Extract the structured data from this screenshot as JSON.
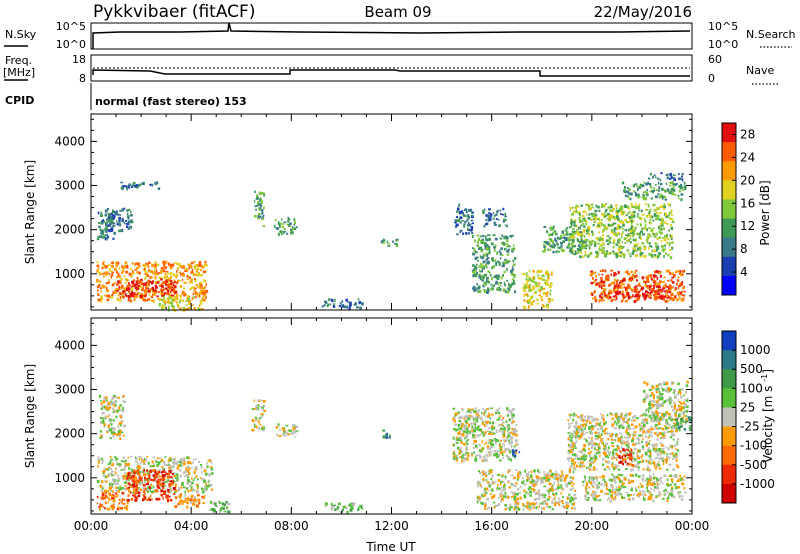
{
  "header": {
    "station": "Pykkvibaer (fitACF)",
    "beam": "Beam 09",
    "date": "22/May/2016"
  },
  "summary_panel": {
    "nsky_label": "N.Sky",
    "nsky_ticks": [
      "10^5",
      "10^0"
    ],
    "nsearch_label": "N.Search",
    "nsearch_ticks": [
      "10^5",
      "10^0"
    ],
    "freq_label": "Freq.",
    "freq_unit": "[MHz]",
    "freq_ticks": [
      "18",
      "8"
    ],
    "nave_label": "Nave",
    "nave_ticks": [
      "60",
      "0"
    ],
    "cpid_label": "CPID",
    "cpid_text": "normal (fast stereo) 153"
  },
  "colors": {
    "power": [
      "#0000ff",
      "#1a3fb0",
      "#3a7a8a",
      "#3f9a58",
      "#7fc83a",
      "#e0d020",
      "#ff9a00",
      "#ff5a00",
      "#e01010"
    ],
    "velocity": [
      "#1040c0",
      "#2a7a8a",
      "#3f9a4a",
      "#58c038",
      "#c0c0b8",
      "#ff9a00",
      "#ff6a00",
      "#ee2a00",
      "#d00000"
    ]
  },
  "chart_data": [
    {
      "type": "heatmap",
      "title": "Power",
      "xlabel": "",
      "ylabel": "Slant Range [km]",
      "x_ticks": [
        "00:00",
        "04:00",
        "08:00",
        "12:00",
        "16:00",
        "20:00",
        "00:00"
      ],
      "x_range_hours": [
        0,
        24
      ],
      "y_range": [
        180,
        4620
      ],
      "y_ticks": [
        1000,
        2000,
        3000,
        4000
      ],
      "colorbar": {
        "label": "Power [dB]",
        "ticks": [
          "4",
          "8",
          "12",
          "16",
          "20",
          "24",
          "28"
        ],
        "range": [
          0,
          30
        ]
      },
      "regions": [
        {
          "t": [
            0.2,
            0.9
          ],
          "r": [
            1800,
            2500
          ],
          "level": 2
        },
        {
          "t": [
            0.2,
            4.6
          ],
          "r": [
            400,
            1300
          ],
          "level": 6
        },
        {
          "t": [
            1.0,
            3.4
          ],
          "r": [
            500,
            900
          ],
          "level": 8
        },
        {
          "t": [
            0.5,
            1.6
          ],
          "r": [
            2000,
            2500
          ],
          "level": 2
        },
        {
          "t": [
            1.1,
            2.7
          ],
          "r": [
            2950,
            3100
          ],
          "level": 2
        },
        {
          "t": [
            2.7,
            4.4
          ],
          "r": [
            200,
            500
          ],
          "level": 5
        },
        {
          "t": [
            6.5,
            6.9
          ],
          "r": [
            2100,
            2900
          ],
          "level": 3
        },
        {
          "t": [
            7.3,
            8.2
          ],
          "r": [
            1900,
            2300
          ],
          "level": 3
        },
        {
          "t": [
            9.2,
            10.8
          ],
          "r": [
            250,
            450
          ],
          "level": 2
        },
        {
          "t": [
            11.4,
            12.2
          ],
          "r": [
            1650,
            1800
          ],
          "level": 3
        },
        {
          "t": [
            14.5,
            15.2
          ],
          "r": [
            1900,
            2600
          ],
          "level": 2
        },
        {
          "t": [
            15.2,
            16.9
          ],
          "r": [
            600,
            1900
          ],
          "level": 3
        },
        {
          "t": [
            15.6,
            16.6
          ],
          "r": [
            2100,
            2500
          ],
          "level": 2
        },
        {
          "t": [
            17.2,
            18.4
          ],
          "r": [
            250,
            1100
          ],
          "level": 5
        },
        {
          "t": [
            18.0,
            19.6
          ],
          "r": [
            1500,
            2100
          ],
          "level": 3
        },
        {
          "t": [
            19.1,
            23.2
          ],
          "r": [
            1400,
            2600
          ],
          "level": 4
        },
        {
          "t": [
            19.9,
            23.7
          ],
          "r": [
            400,
            1100
          ],
          "level": 7
        },
        {
          "t": [
            20.8,
            23.1
          ],
          "r": [
            450,
            750
          ],
          "level": 8
        },
        {
          "t": [
            21.2,
            23.7
          ],
          "r": [
            2700,
            3100
          ],
          "level": 3
        },
        {
          "t": [
            22.2,
            23.6
          ],
          "r": [
            3150,
            3300
          ],
          "level": 2
        }
      ]
    },
    {
      "type": "heatmap",
      "title": "Velocity",
      "xlabel": "Time UT",
      "ylabel": "Slant Range [km]",
      "x_ticks": [
        "00:00",
        "04:00",
        "08:00",
        "12:00",
        "16:00",
        "20:00",
        "00:00"
      ],
      "x_range_hours": [
        0,
        24
      ],
      "y_range": [
        180,
        4620
      ],
      "y_ticks": [
        1000,
        2000,
        3000,
        4000
      ],
      "colorbar": {
        "label": "Velocity [m s^-1]",
        "ticks": [
          "1000",
          "500",
          "100",
          "25",
          "-25",
          "-100",
          "-500",
          "-1000"
        ]
      },
      "regions": [
        {
          "t": [
            0.2,
            4.8
          ],
          "r": [
            700,
            1500
          ],
          "level": 4
        },
        {
          "t": [
            0.2,
            1.5
          ],
          "r": [
            300,
            700
          ],
          "level": 6
        },
        {
          "t": [
            1.4,
            3.3
          ],
          "r": [
            500,
            1200
          ],
          "level": 7
        },
        {
          "t": [
            0.3,
            1.3
          ],
          "r": [
            1900,
            2900
          ],
          "level": 4
        },
        {
          "t": [
            3.3,
            4.5
          ],
          "r": [
            350,
            650
          ],
          "level": 5
        },
        {
          "t": [
            4.7,
            5.6
          ],
          "r": [
            250,
            500
          ],
          "level": 3
        },
        {
          "t": [
            6.4,
            6.9
          ],
          "r": [
            2100,
            2800
          ],
          "level": 4
        },
        {
          "t": [
            7.3,
            8.2
          ],
          "r": [
            1950,
            2250
          ],
          "level": 4
        },
        {
          "t": [
            9.3,
            10.8
          ],
          "r": [
            250,
            450
          ],
          "level": 3
        },
        {
          "t": [
            11.6,
            11.9
          ],
          "r": [
            1900,
            2100
          ],
          "level": 1
        },
        {
          "t": [
            14.4,
            17.0
          ],
          "r": [
            1400,
            2600
          ],
          "level": 4
        },
        {
          "t": [
            16.8,
            17.1
          ],
          "r": [
            1500,
            1650
          ],
          "level": 1
        },
        {
          "t": [
            15.4,
            19.3
          ],
          "r": [
            300,
            1200
          ],
          "level": 4
        },
        {
          "t": [
            19.0,
            23.4
          ],
          "r": [
            1200,
            2500
          ],
          "level": 4
        },
        {
          "t": [
            19.6,
            23.7
          ],
          "r": [
            500,
            1100
          ],
          "level": 4
        },
        {
          "t": [
            21.0,
            21.6
          ],
          "r": [
            1300,
            1700
          ],
          "level": 7
        },
        {
          "t": [
            22.0,
            23.8
          ],
          "r": [
            2200,
            3200
          ],
          "level": 4
        },
        {
          "t": [
            23.3,
            23.9
          ],
          "r": [
            2100,
            2400
          ],
          "level": 2
        }
      ]
    }
  ]
}
